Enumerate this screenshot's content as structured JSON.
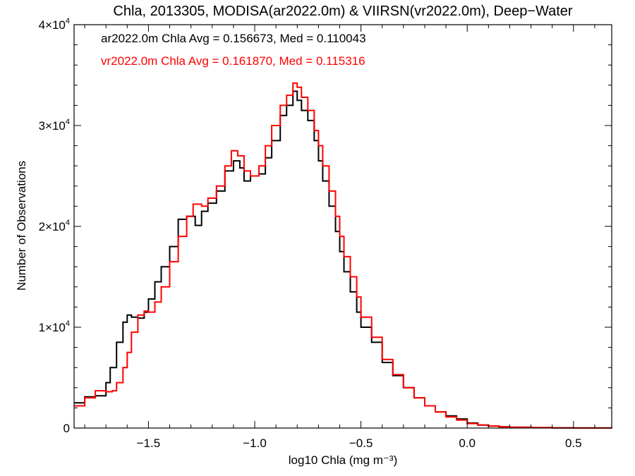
{
  "chart_data": {
    "type": "line",
    "title": "Chla, 2013305, MODISA(ar2022.0m) & VIIRSN(vr2022.0m), Deep−Water",
    "xlabel": "log10 Chla (mg m⁻³)",
    "ylabel": "Number of Observations",
    "xlim": [
      -1.85,
      0.68
    ],
    "ylim": [
      0,
      40000
    ],
    "x_ticks": [
      {
        "value": -1.5,
        "label": "−1.5"
      },
      {
        "value": -1.0,
        "label": "−1.0"
      },
      {
        "value": -0.5,
        "label": "−0.5"
      },
      {
        "value": 0.0,
        "label": "0.0"
      },
      {
        "value": 0.5,
        "label": "0.5"
      }
    ],
    "y_ticks": [
      {
        "value": 0,
        "base": "0",
        "exp": ""
      },
      {
        "value": 10000,
        "base": "1×10",
        "exp": "4"
      },
      {
        "value": 20000,
        "base": "2×10",
        "exp": "4"
      },
      {
        "value": 30000,
        "base": "3×10",
        "exp": "4"
      },
      {
        "value": 40000,
        "base": "4×10",
        "exp": "4"
      }
    ],
    "annotations": [
      {
        "text": "ar2022.0m Chla Avg = 0.156673, Med = 0.110043",
        "color": "#000000"
      },
      {
        "text": "vr2022.0m Chla Avg = 0.161870, Med = 0.115316",
        "color": "#ff0000"
      }
    ],
    "series": [
      {
        "color": "#000000",
        "x": [
          -1.85,
          -1.8,
          -1.75,
          -1.7,
          -1.68,
          -1.65,
          -1.62,
          -1.6,
          -1.58,
          -1.55,
          -1.52,
          -1.5,
          -1.47,
          -1.44,
          -1.4,
          -1.36,
          -1.32,
          -1.28,
          -1.25,
          -1.22,
          -1.18,
          -1.14,
          -1.1,
          -1.07,
          -1.05,
          -1.02,
          -0.98,
          -0.95,
          -0.92,
          -0.88,
          -0.85,
          -0.82,
          -0.8,
          -0.78,
          -0.75,
          -0.72,
          -0.7,
          -0.68,
          -0.65,
          -0.62,
          -0.6,
          -0.58,
          -0.55,
          -0.52,
          -0.5,
          -0.45,
          -0.4,
          -0.35,
          -0.3,
          -0.25,
          -0.2,
          -0.15,
          -0.1,
          -0.05,
          0.0,
          0.05,
          0.1,
          0.15,
          0.2,
          0.3,
          0.4,
          0.5,
          0.6,
          0.68
        ],
        "y": [
          2500,
          3100,
          3200,
          4500,
          6000,
          8500,
          10500,
          11200,
          11000,
          10900,
          11500,
          12800,
          14500,
          16000,
          18000,
          20700,
          21000,
          20100,
          21500,
          22300,
          23500,
          25500,
          26500,
          25800,
          24500,
          25000,
          25200,
          26800,
          28500,
          31000,
          32000,
          33400,
          32500,
          31500,
          30500,
          28500,
          26500,
          24500,
          22000,
          19500,
          17500,
          15500,
          13500,
          11500,
          10000,
          8500,
          6500,
          5200,
          4000,
          3000,
          2200,
          1600,
          1200,
          900,
          500,
          300,
          200,
          120,
          80,
          40,
          20,
          10,
          5,
          0
        ]
      },
      {
        "color": "#ff0000",
        "x": [
          -1.85,
          -1.8,
          -1.75,
          -1.7,
          -1.67,
          -1.65,
          -1.62,
          -1.6,
          -1.58,
          -1.55,
          -1.52,
          -1.5,
          -1.47,
          -1.44,
          -1.4,
          -1.36,
          -1.32,
          -1.29,
          -1.25,
          -1.22,
          -1.18,
          -1.14,
          -1.11,
          -1.08,
          -1.05,
          -1.02,
          -0.98,
          -0.95,
          -0.92,
          -0.88,
          -0.85,
          -0.82,
          -0.8,
          -0.78,
          -0.75,
          -0.72,
          -0.7,
          -0.68,
          -0.65,
          -0.62,
          -0.6,
          -0.58,
          -0.55,
          -0.52,
          -0.5,
          -0.45,
          -0.4,
          -0.35,
          -0.3,
          -0.25,
          -0.2,
          -0.15,
          -0.1,
          -0.05,
          0.0,
          0.05,
          0.1,
          0.15,
          0.2,
          0.3,
          0.4,
          0.5,
          0.6,
          0.68
        ],
        "y": [
          2200,
          3000,
          3700,
          3600,
          3700,
          4500,
          6000,
          7500,
          9500,
          11200,
          11600,
          11500,
          12500,
          14000,
          16500,
          19000,
          21000,
          22200,
          22000,
          22800,
          24000,
          26000,
          27500,
          27000,
          25500,
          25000,
          26000,
          28000,
          30000,
          32000,
          33000,
          34200,
          33800,
          32800,
          31500,
          29500,
          28000,
          26000,
          23500,
          21000,
          19000,
          17000,
          15000,
          13000,
          11000,
          9000,
          6800,
          5300,
          4000,
          3000,
          2200,
          1600,
          1100,
          800,
          450,
          300,
          200,
          120,
          80,
          40,
          20,
          10,
          5,
          0
        ]
      }
    ]
  }
}
